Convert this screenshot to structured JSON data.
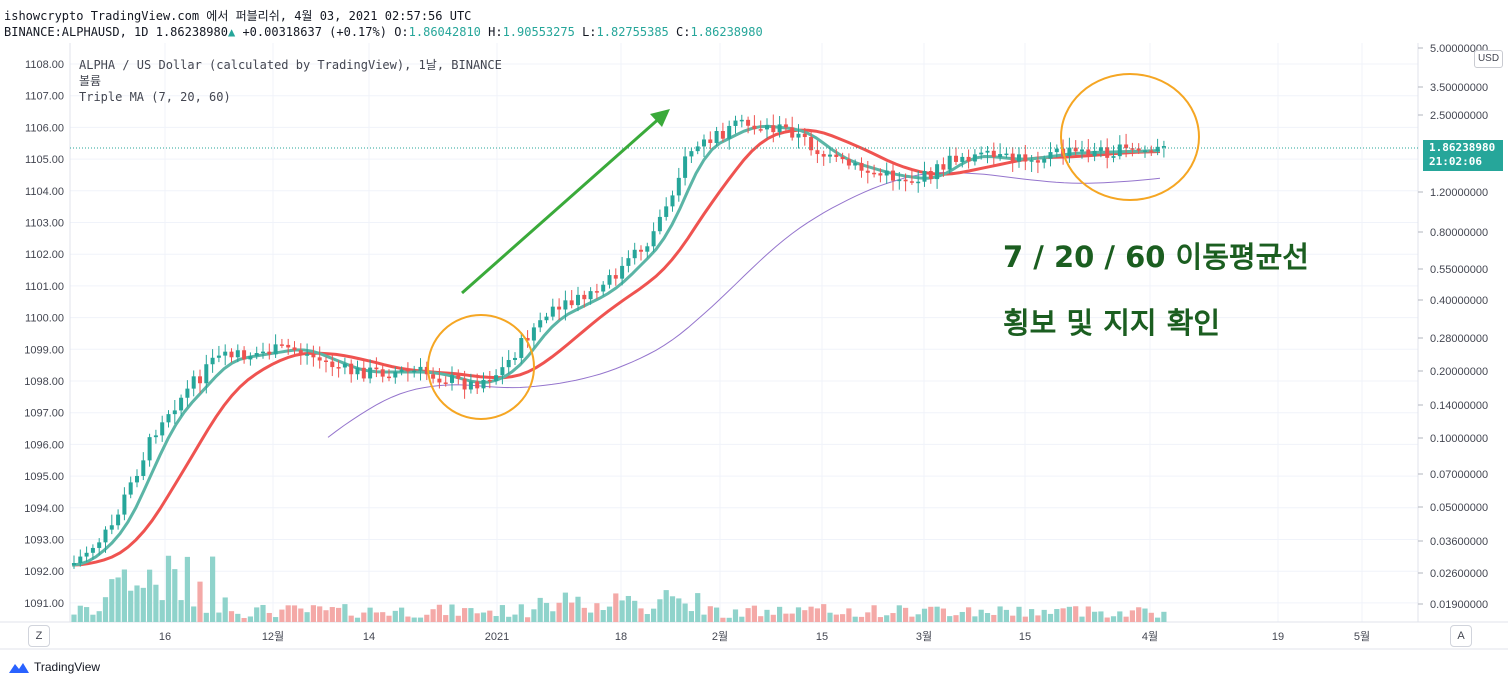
{
  "header": {
    "line1": "ishowcrypto TradingView.com 에서 퍼블리쉬, 4월 03, 2021 02:57:56 UTC",
    "symbol": "BINANCE:ALPHAUSD, 1D",
    "last": "1.86238980",
    "change": "+0.00318637 (+0.17%)",
    "o_label": "O:",
    "o": "1.86042810",
    "h_label": "H:",
    "h": "1.90553275",
    "l_label": "L:",
    "l": "1.82755385",
    "c_label": "C:",
    "c": "1.86238980"
  },
  "legend": {
    "title": "ALPHA / US Dollar (calculated by TradingView), 1날, BINANCE",
    "volume": "볼륨",
    "indicator": "Triple MA (7, 20, 60)"
  },
  "annotation": {
    "line1": "7 / 20 / 60 이동평균선",
    "line2": "횡보 및 지지 확인"
  },
  "price_axis": {
    "currency": "USD",
    "current_price": "1.86238980",
    "countdown": "21:02:06",
    "labels": [
      "5.00000000",
      "3.50000000",
      "2.50000000",
      "1.20000000",
      "0.80000000",
      "0.55000000",
      "0.40000000",
      "0.28000000",
      "0.20000000",
      "0.14000000",
      "0.10000000",
      "0.07000000",
      "0.05000000",
      "0.03600000",
      "0.02600000",
      "0.01900000"
    ]
  },
  "left_axis": {
    "labels": [
      "1108.00",
      "1107.00",
      "1106.00",
      "1105.00",
      "1104.00",
      "1103.00",
      "1102.00",
      "1101.00",
      "1100.00",
      "1099.00",
      "1098.00",
      "1097.00",
      "1096.00",
      "1095.00",
      "1094.00",
      "1093.00",
      "1092.00",
      "1091.00"
    ]
  },
  "time_axis": {
    "labels": [
      "16",
      "12월",
      "14",
      "2021",
      "18",
      "2월",
      "15",
      "3월",
      "15",
      "4월",
      "19",
      "5월"
    ]
  },
  "buttons": {
    "zoom": "Z",
    "auto": "A"
  },
  "footer": {
    "brand": "TradingView"
  },
  "colors": {
    "up": "#26a69a",
    "down": "#ef5350",
    "ma7": "#5bb5a6",
    "ma20": "#ef5350",
    "ma60": "#9575cd",
    "circle": "#f5a623",
    "arrow": "#3aaa3a"
  },
  "chart_data": {
    "type": "candlestick",
    "scale": "log",
    "series": [
      {
        "name": "Triple MA (7, 20, 60)"
      }
    ]
  }
}
